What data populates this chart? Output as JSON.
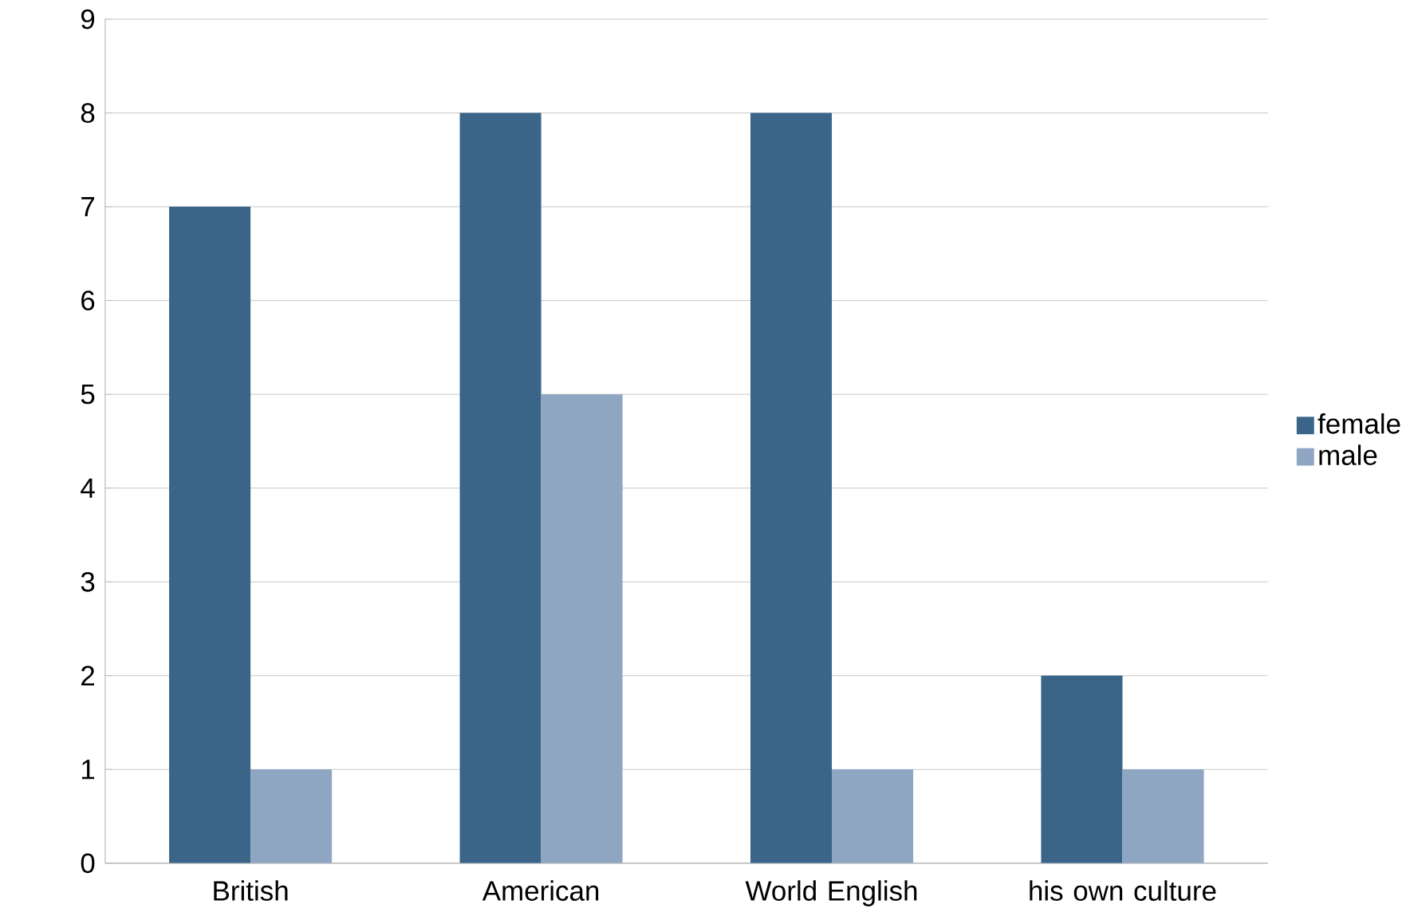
{
  "chart_data": {
    "type": "bar",
    "categories": [
      "British",
      "American",
      "World English",
      "his own culture"
    ],
    "series": [
      {
        "name": "female",
        "color": "#3b6489",
        "values": [
          7,
          8,
          8,
          2
        ]
      },
      {
        "name": "male",
        "color": "#8fa6c3",
        "values": [
          1,
          5,
          1,
          1
        ]
      }
    ],
    "ylim": [
      0,
      9
    ],
    "yticks": [
      0,
      1,
      2,
      3,
      4,
      5,
      6,
      7,
      8,
      9
    ],
    "grid": "y",
    "legend": "right"
  }
}
